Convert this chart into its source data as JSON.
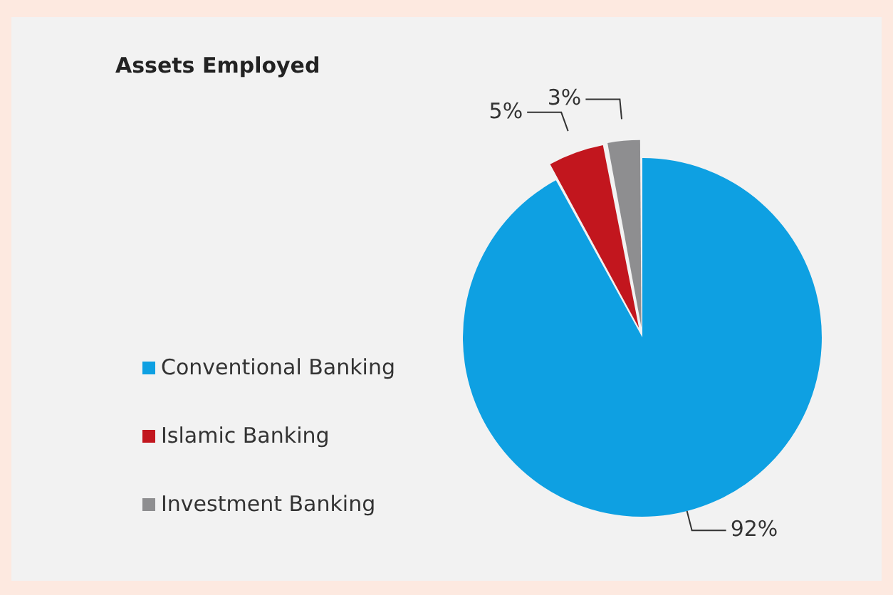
{
  "chart_data": {
    "type": "pie",
    "title": "Assets Employed",
    "categories": [
      "Conventional Banking",
      "Islamic Banking",
      "Investment Banking"
    ],
    "values": [
      92,
      5,
      3
    ],
    "colors": [
      "#0ea0e2",
      "#c2161e",
      "#8e8e90"
    ],
    "value_labels": [
      "92%",
      "5%",
      "3%"
    ],
    "legend": "left"
  }
}
